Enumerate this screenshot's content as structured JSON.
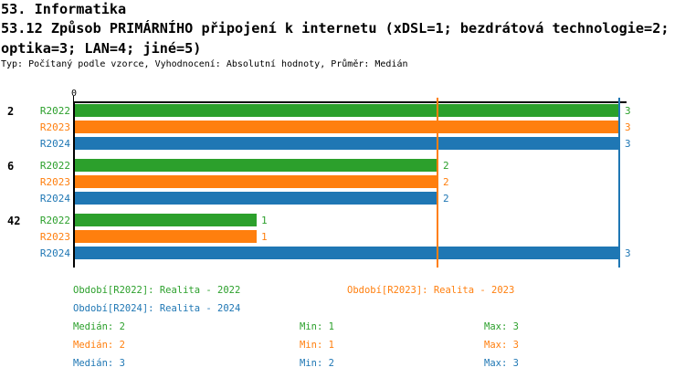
{
  "header": {
    "title": "53. Informatika",
    "subtitle_lines": [
      "53.12 Způsob PRIMÁRNÍHO připojení k internetu (xDSL=1; bezdrátová technologie=2;",
      "optika=3; LAN=4; jiné=5)"
    ],
    "meta": "Typ: Počítaný podle vzorce, Vyhodnocení: Absolutní hodnoty, Průměr: Medián"
  },
  "colors": {
    "green": "#2ca02c",
    "orange": "#ff7f0e",
    "blue": "#1f77b4",
    "axis": "#000000",
    "background": "#ffffff"
  },
  "chart_data": {
    "type": "bar",
    "orientation": "horizontal",
    "title": "53.12 Způsob PRIMÁRNÍHO připojení k internetu",
    "xlim": [
      0,
      3
    ],
    "x_axis": {
      "tick_labels": [
        "0"
      ],
      "grid": false
    },
    "axis_zero_label": "0",
    "series_colors": {
      "R2022": "#2ca02c",
      "R2023": "#ff7f0e",
      "R2024": "#1f77b4"
    },
    "groups": [
      {
        "label": "2",
        "bars": [
          {
            "series": "R2022",
            "value": 3
          },
          {
            "series": "R2023",
            "value": 3
          },
          {
            "series": "R2024",
            "value": 3
          }
        ]
      },
      {
        "label": "6",
        "bars": [
          {
            "series": "R2022",
            "value": 2
          },
          {
            "series": "R2023",
            "value": 2
          },
          {
            "series": "R2024",
            "value": 2
          }
        ]
      },
      {
        "label": "42",
        "bars": [
          {
            "series": "R2022",
            "value": 1
          },
          {
            "series": "R2023",
            "value": 1
          },
          {
            "series": "R2024",
            "value": 3
          }
        ]
      }
    ],
    "reference_lines": [
      {
        "value": 2,
        "color": "#ff7f0e",
        "meaning": "Medián R2023"
      },
      {
        "value": 3,
        "color": "#1f77b4",
        "meaning": "Medián R2024"
      }
    ],
    "legend_position": "bottom"
  },
  "legend": {
    "periods": [
      {
        "series": "R2022",
        "label": "Období[R2022]: Realita - 2022"
      },
      {
        "series": "R2023",
        "label": "Období[R2023]: Realita - 2023"
      },
      {
        "series": "R2024",
        "label": "Období[R2024]: Realita - 2024"
      }
    ],
    "stats": [
      {
        "series": "R2022",
        "median": "Medián: 2",
        "min": "Min: 1",
        "max": "Max: 3"
      },
      {
        "series": "R2023",
        "median": "Medián: 2",
        "min": "Min: 1",
        "max": "Max: 3"
      },
      {
        "series": "R2024",
        "median": "Medián: 3",
        "min": "Min: 2",
        "max": "Max: 3"
      }
    ]
  }
}
